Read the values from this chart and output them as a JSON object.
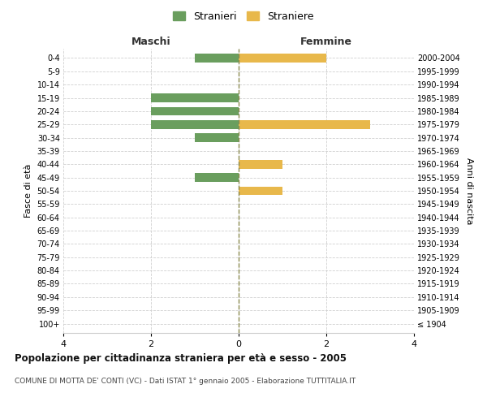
{
  "age_groups": [
    "100+",
    "95-99",
    "90-94",
    "85-89",
    "80-84",
    "75-79",
    "70-74",
    "65-69",
    "60-64",
    "55-59",
    "50-54",
    "45-49",
    "40-44",
    "35-39",
    "30-34",
    "25-29",
    "20-24",
    "15-19",
    "10-14",
    "5-9",
    "0-4"
  ],
  "birth_years": [
    "≤ 1904",
    "1905-1909",
    "1910-1914",
    "1915-1919",
    "1920-1924",
    "1925-1929",
    "1930-1934",
    "1935-1939",
    "1940-1944",
    "1945-1949",
    "1950-1954",
    "1955-1959",
    "1960-1964",
    "1965-1969",
    "1970-1974",
    "1975-1979",
    "1980-1984",
    "1985-1989",
    "1990-1994",
    "1995-1999",
    "2000-2004"
  ],
  "males": [
    0,
    0,
    0,
    0,
    0,
    0,
    0,
    0,
    0,
    0,
    0,
    -1,
    0,
    0,
    -1,
    -2,
    -2,
    -2,
    0,
    0,
    -1
  ],
  "females": [
    0,
    0,
    0,
    0,
    0,
    0,
    0,
    0,
    0,
    0,
    1,
    0,
    1,
    0,
    0,
    3,
    0,
    0,
    0,
    0,
    2
  ],
  "male_color": "#6a9e5e",
  "female_color": "#e8b84b",
  "title": "Popolazione per cittadinanza straniera per età e sesso - 2005",
  "subtitle": "COMUNE DI MOTTA DE' CONTI (VC) - Dati ISTAT 1° gennaio 2005 - Elaborazione TUTTITALIA.IT",
  "xlabel_left": "Maschi",
  "xlabel_right": "Femmine",
  "ylabel_left": "Fasce di età",
  "ylabel_right": "Anni di nascita",
  "legend_male": "Stranieri",
  "legend_female": "Straniere",
  "xlim": [
    -4,
    4
  ],
  "background_color": "#ffffff",
  "grid_color": "#d0d0d0",
  "center_line_color": "#8a8a50"
}
